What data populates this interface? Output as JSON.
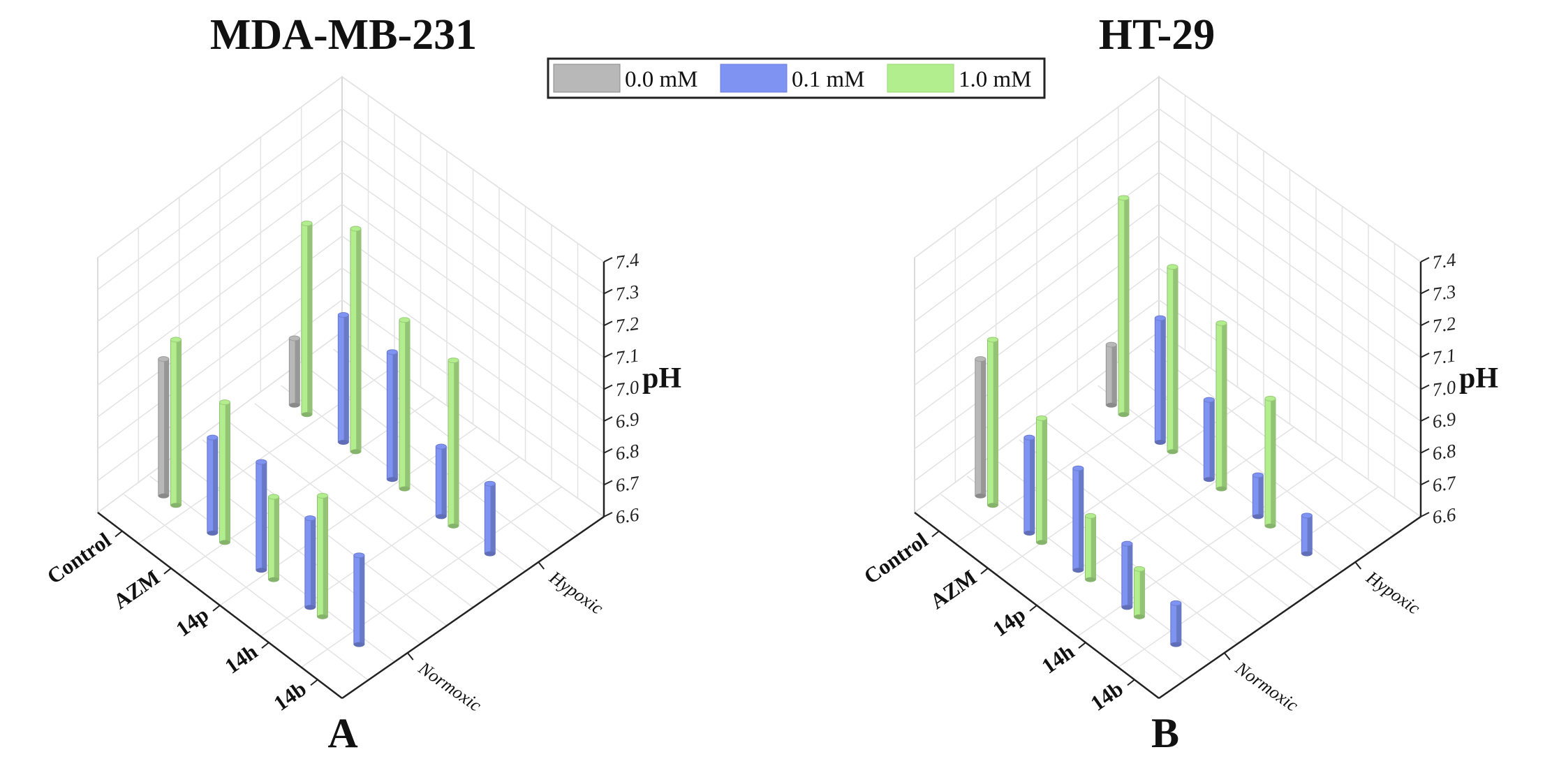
{
  "legend": {
    "items": [
      {
        "label": "0.0 mM",
        "color": "#b8b8b8"
      },
      {
        "label": "0.1 mM",
        "color": "#7f93f2"
      },
      {
        "label": "1.0 mM",
        "color": "#b3ee8e"
      }
    ]
  },
  "axis": {
    "z_label": "pH",
    "z_ticks": [
      "6.6",
      "6.7",
      "6.8",
      "6.9",
      "7.0",
      "7.1",
      "7.2",
      "7.3",
      "7.4"
    ],
    "z_range": [
      6.6,
      7.4
    ],
    "compounds": [
      "Control",
      "AZM",
      "14p",
      "14h",
      "14b"
    ],
    "conditions": [
      "Normoxic",
      "Hypoxic"
    ]
  },
  "colors": {
    "dose_0.0": "#b8b8b8",
    "dose_0.1": "#7f93f2",
    "dose_1.0": "#b3ee8e"
  },
  "chart_data": [
    {
      "type": "bar3d",
      "title": "MDA-MB-231",
      "panel_label": "A",
      "zlabel": "pH",
      "zlim": [
        6.6,
        7.4
      ],
      "compounds": [
        "Control",
        "AZM",
        "14p",
        "14h",
        "14b"
      ],
      "conditions": [
        "Normoxic",
        "Hypoxic"
      ],
      "series": [
        {
          "name": "0.0 mM",
          "compound": "Control",
          "values": {
            "Normoxic": 7.03,
            "Hypoxic": 6.81
          }
        },
        {
          "name": "1.0 mM",
          "compound": "Control",
          "values": {
            "Normoxic": 7.12,
            "Hypoxic": 7.2
          }
        },
        {
          "name": "0.1 mM",
          "compound": "AZM",
          "values": {
            "Normoxic": 6.9,
            "Hypoxic": 7.0
          }
        },
        {
          "name": "1.0 mM",
          "compound": "AZM",
          "values": {
            "Normoxic": 7.04,
            "Hypoxic": 7.3
          }
        },
        {
          "name": "0.1 mM",
          "compound": "14p",
          "values": {
            "Normoxic": 6.94,
            "Hypoxic": 7.0
          }
        },
        {
          "name": "1.0 mM",
          "compound": "14p",
          "values": {
            "Normoxic": 6.86,
            "Hypoxic": 7.13
          }
        },
        {
          "name": "0.1 mM",
          "compound": "14h",
          "values": {
            "Normoxic": 6.88,
            "Hypoxic": 6.82
          }
        },
        {
          "name": "1.0 mM",
          "compound": "14h",
          "values": {
            "Normoxic": 6.98,
            "Hypoxic": 7.12
          }
        },
        {
          "name": "0.1 mM",
          "compound": "14b",
          "values": {
            "Normoxic": 6.88,
            "Hypoxic": 6.82
          }
        }
      ]
    },
    {
      "type": "bar3d",
      "title": "HT-29",
      "panel_label": "B",
      "zlabel": "pH",
      "zlim": [
        6.6,
        7.4
      ],
      "compounds": [
        "Control",
        "AZM",
        "14p",
        "14h",
        "14b"
      ],
      "conditions": [
        "Normoxic",
        "Hypoxic"
      ],
      "series": [
        {
          "name": "0.0 mM",
          "compound": "Control",
          "values": {
            "Normoxic": 7.03,
            "Hypoxic": 6.79
          }
        },
        {
          "name": "1.0 mM",
          "compound": "Control",
          "values": {
            "Normoxic": 7.12,
            "Hypoxic": 7.28
          }
        },
        {
          "name": "0.1 mM",
          "compound": "AZM",
          "values": {
            "Normoxic": 6.9,
            "Hypoxic": 6.99
          }
        },
        {
          "name": "1.0 mM",
          "compound": "AZM",
          "values": {
            "Normoxic": 6.99,
            "Hypoxic": 7.18
          }
        },
        {
          "name": "0.1 mM",
          "compound": "14p",
          "values": {
            "Normoxic": 6.92,
            "Hypoxic": 6.85
          }
        },
        {
          "name": "1.0 mM",
          "compound": "14p",
          "values": {
            "Normoxic": 6.8,
            "Hypoxic": 7.12
          }
        },
        {
          "name": "0.1 mM",
          "compound": "14h",
          "values": {
            "Normoxic": 6.8,
            "Hypoxic": 6.73
          }
        },
        {
          "name": "1.0 mM",
          "compound": "14h",
          "values": {
            "Normoxic": 6.75,
            "Hypoxic": 7.0
          }
        },
        {
          "name": "0.1 mM",
          "compound": "14b",
          "values": {
            "Normoxic": 6.73,
            "Hypoxic": 6.72
          }
        }
      ]
    }
  ]
}
